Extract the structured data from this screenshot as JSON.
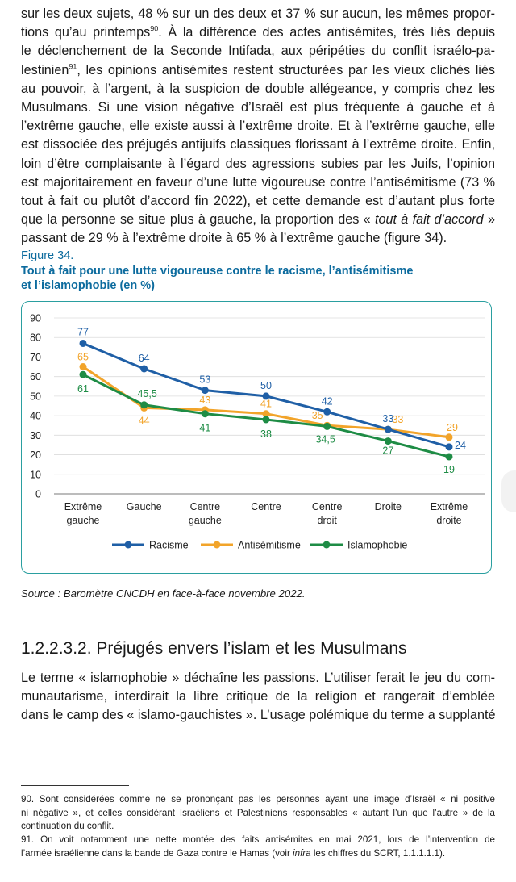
{
  "intro_lines": [
    "sur les deux sujets, 48 % sur un des deux et 37 % sur aucun, les mêmes propor-",
    "tions qu’au printemps",
    ". À la différence des actes antisémites, très liés depuis",
    "le déclenchement de la Seconde Intifada, aux péripéties du conflit israélo-pa-",
    "lestinien",
    ", les opinions antisémites restent structurées par les vieux clichés liés",
    "au pouvoir, à l’argent, à la suspicion de double allégeance, y compris chez les",
    "Musulmans. Si une vision négative d’Israël est plus fréquente à gauche et à",
    "l’extrême gauche, elle existe aussi à l’extrême droite. Et à l’extrême gauche, elle",
    "est dissociée des préjugés antijuifs classiques florissant à l’extrême droite. Enfin,",
    "loin d’être complaisante à l’égard des agressions subies par les Juifs, l’opinion",
    "est majoritairement en faveur d’une lutte vigoureuse contre l’antisémitisme (73 %",
    "tout à fait ou plutôt d’accord fin 2022), et cette demande est d’autant plus forte",
    "que la personne se situe plus à gauche, la proportion des « ",
    "tout à fait d’accord",
    " »",
    "passant de 29 % à l’extrême droite à 65 % à l’extrême gauche (figure 34)."
  ],
  "footnote_refs": [
    "90",
    "91"
  ],
  "figure": {
    "number": "Figure 34.",
    "title_line1": "Tout à fait pour une lutte vigoureuse contre le racisme, l’antisémitisme",
    "title_line2": "et l’islamophobie (en %)"
  },
  "chart_data": {
    "type": "line",
    "categories": [
      [
        "Extrême",
        "gauche"
      ],
      [
        "Gauche"
      ],
      [
        "Centre",
        "gauche"
      ],
      [
        "Centre"
      ],
      [
        "Centre",
        "droit"
      ],
      [
        "Droite"
      ],
      [
        "Extrême",
        "droite"
      ]
    ],
    "yticks": [
      0,
      10,
      20,
      30,
      40,
      50,
      60,
      70,
      80,
      90
    ],
    "ylim": [
      0,
      90
    ],
    "grid": true,
    "legend_position": "bottom",
    "series": [
      {
        "name": "Racisme",
        "color": "#1f5fa6",
        "values": [
          77,
          64,
          53,
          50,
          42,
          33,
          24
        ],
        "labels": [
          "77",
          "64",
          "53",
          "50",
          "42",
          "33",
          "24"
        ]
      },
      {
        "name": "Antisémitisme",
        "color": "#f2a42a",
        "values": [
          65,
          44,
          43,
          41,
          35,
          33,
          29
        ],
        "labels": [
          "65",
          "44",
          "43",
          "41",
          "35",
          "33",
          "29"
        ]
      },
      {
        "name": "Islamophobie",
        "color": "#1e8c45",
        "values": [
          61,
          45.5,
          41,
          38,
          34.5,
          27,
          19
        ],
        "labels": [
          "61",
          "45,5",
          "41",
          "38",
          "34,5",
          "27",
          "19"
        ]
      }
    ]
  },
  "source": "Source : Baromètre CNCDH en face-à-face novembre 2022.",
  "section_title": "1.2.2.3.2. Préjugés envers l’islam et les Musulmans",
  "body_lines": [
    "Le terme « islamophobie » déchaîne les passions. L’utiliser ferait le jeu du com-",
    "munautarisme, interdirait la libre critique de la religion et rangerait d’emblée",
    "dans le camp des « islamo-gauchistes ». L’usage polémique du terme a supplanté"
  ],
  "footnotes": {
    "fn90_lines": [
      "90.   Sont considérées comme ne se prononçant pas les personnes ayant une image d’Israël « ni positive",
      "ni négative », et celles considérant Israéliens et Palestiniens responsables « autant l’un que l’autre » de la",
      "continuation du conflit."
    ],
    "fn91_line1": "91.   On voit notamment une nette montée des faits antisémites en mai 2021, lors de l’intervention de",
    "fn91_line2_a": "l’armée israélienne dans la bande de Gaza contre le Hamas (voir ",
    "fn91_line2_italic": "infra",
    "fn91_line2_b": " les chiffres du SCRT, 1.1.1.1.1)."
  }
}
